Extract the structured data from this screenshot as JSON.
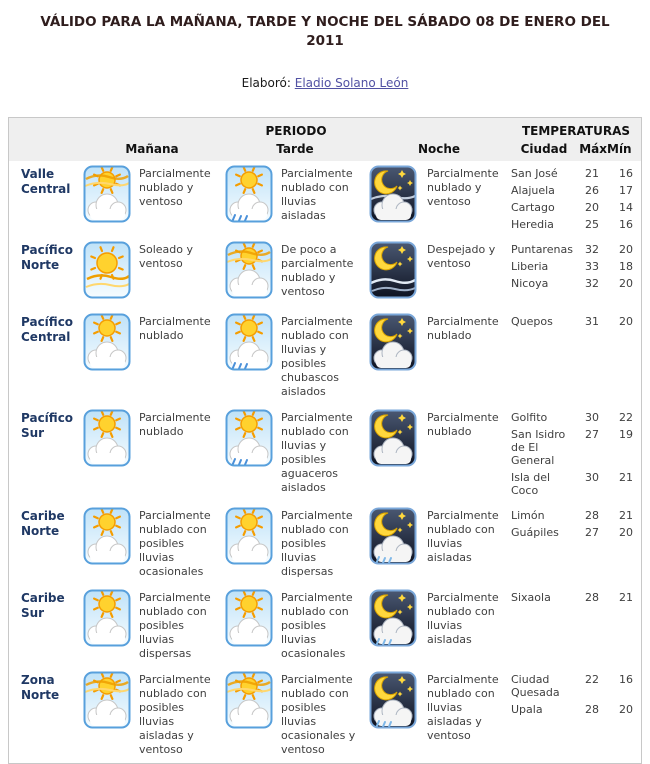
{
  "page": {
    "title": "VÁLIDO PARA LA MAÑANA, TARDE Y NOCHE DEL SÁBADO 08 DE ENERO DEL 2011",
    "author_label": "Elaboró:",
    "author_link": "Eladio Solano León"
  },
  "colors": {
    "title": "#2f1d1d",
    "region": "#1f3864",
    "link": "#5151a3",
    "header_bg": "#efefef",
    "body_text": "#3f3f3f",
    "border": "#c8c8c8"
  },
  "table": {
    "period_header": "PERIODO",
    "temps_header": "TEMPERATURAS",
    "col_headers": {
      "manana": "Mañana",
      "tarde": "Tarde",
      "noche": "Noche",
      "ciudad": "Ciudad",
      "max": "Máx",
      "min": "Mín"
    },
    "rows": [
      {
        "region": "Valle Central",
        "manana": {
          "icon": "sun-cloud-windy",
          "text": "Parcialmente nublado y ventoso"
        },
        "tarde": {
          "icon": "sun-cloud-rain",
          "text": "Parcialmente nublado con lluvias aisladas"
        },
        "noche": {
          "icon": "night-cloud-windy",
          "text": "Parcialmente nublado y ventoso"
        },
        "cities": [
          {
            "name": "San José",
            "max": 21,
            "min": 16
          },
          {
            "name": "Alajuela",
            "max": 26,
            "min": 17
          },
          {
            "name": "Cartago",
            "max": 20,
            "min": 14
          },
          {
            "name": "Heredia",
            "max": 25,
            "min": 16
          }
        ]
      },
      {
        "region": "Pacífico Norte",
        "manana": {
          "icon": "sun-windy",
          "text": "Soleado y ventoso"
        },
        "tarde": {
          "icon": "sun-cloud-windy",
          "text": "De poco a parcialmente nublado y ventoso"
        },
        "noche": {
          "icon": "night-windy",
          "text": "Despejado y ventoso"
        },
        "cities": [
          {
            "name": "Puntarenas",
            "max": 32,
            "min": 20
          },
          {
            "name": "Liberia",
            "max": 33,
            "min": 18
          },
          {
            "name": "Nicoya",
            "max": 32,
            "min": 20
          }
        ]
      },
      {
        "region": "Pacífico Central",
        "manana": {
          "icon": "sun-cloud",
          "text": "Parcialmente nublado"
        },
        "tarde": {
          "icon": "sun-cloud-rain",
          "text": "Parcialmente nublado con lluvias y posibles chubascos aislados"
        },
        "noche": {
          "icon": "night-cloud",
          "text": "Parcialmente nublado"
        },
        "cities": [
          {
            "name": "Quepos",
            "max": 31,
            "min": 20
          }
        ]
      },
      {
        "region": "Pacífico Sur",
        "manana": {
          "icon": "sun-cloud",
          "text": "Parcialmente nublado"
        },
        "tarde": {
          "icon": "sun-cloud-rain",
          "text": "Parcialmente nublado con lluvias y posibles aguaceros aislados"
        },
        "noche": {
          "icon": "night-cloud",
          "text": "Parcialmente nublado"
        },
        "cities": [
          {
            "name": "Golfito",
            "max": 30,
            "min": 22
          },
          {
            "name": "San Isidro de El General",
            "max": 27,
            "min": 19
          },
          {
            "name": "Isla del Coco",
            "max": 30,
            "min": 21
          }
        ]
      },
      {
        "region": "Caribe Norte",
        "manana": {
          "icon": "sun-cloud",
          "text": "Parcialmente nublado con posibles lluvias ocasionales"
        },
        "tarde": {
          "icon": "sun-cloud",
          "text": "Parcialmente nublado con posibles lluvias dispersas"
        },
        "noche": {
          "icon": "night-cloud-rain",
          "text": "Parcialmente nublado con lluvias aisladas"
        },
        "cities": [
          {
            "name": "Limón",
            "max": 28,
            "min": 21
          },
          {
            "name": "Guápiles",
            "max": 27,
            "min": 20
          }
        ]
      },
      {
        "region": "Caribe Sur",
        "manana": {
          "icon": "sun-cloud",
          "text": "Parcialmente nublado con posibles lluvias dispersas"
        },
        "tarde": {
          "icon": "sun-cloud",
          "text": "Parcialmente nublado con posibles lluvias ocasionales"
        },
        "noche": {
          "icon": "night-cloud-rain",
          "text": "Parcialmente nublado con lluvias aisladas"
        },
        "cities": [
          {
            "name": "Sixaola",
            "max": 28,
            "min": 21
          }
        ]
      },
      {
        "region": "Zona Norte",
        "manana": {
          "icon": "sun-cloud-windy",
          "text": "Parcialmente nublado con posibles lluvias aisladas y ventoso"
        },
        "tarde": {
          "icon": "sun-cloud-windy",
          "text": "Parcialmente nublado con posibles lluvias ocasionales y ventoso"
        },
        "noche": {
          "icon": "night-cloud-rain",
          "text": "Parcialmente nublado con lluvias aisladas y ventoso"
        },
        "cities": [
          {
            "name": "Ciudad Quesada",
            "max": 22,
            "min": 16
          },
          {
            "name": "Upala",
            "max": 28,
            "min": 20
          }
        ]
      }
    ]
  }
}
